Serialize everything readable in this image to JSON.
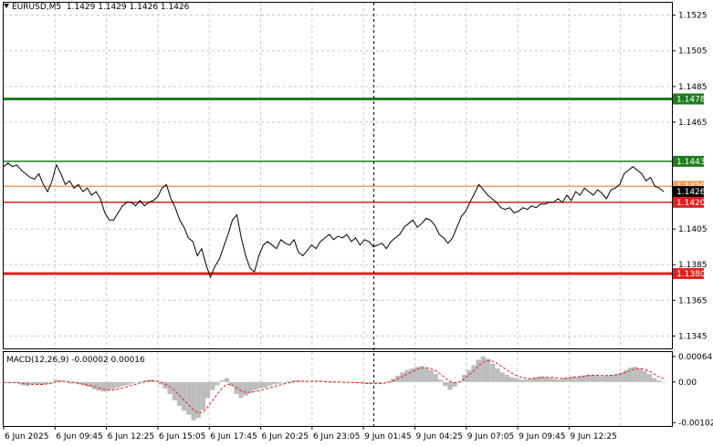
{
  "header": {
    "symbol": "EURUSD,M5",
    "ohlc": "1.1429 1.1429 1.1426 1.1426"
  },
  "price_axis": {
    "ticks": [
      "1.1525",
      "1.1505",
      "1.1485",
      "1.1465",
      "1.1405",
      "1.1385",
      "1.1365",
      "1.1345"
    ]
  },
  "levels": [
    {
      "label": "1.1478",
      "value": 1.1478,
      "color": "#1e7d1e",
      "style": "thick"
    },
    {
      "label": "1.1443",
      "value": 1.1443,
      "color": "#1e7d1e",
      "style": "thin"
    },
    {
      "label": "1.1429",
      "value": 1.1429,
      "color": "#f0a060",
      "style": "thin"
    },
    {
      "label": "1.1426",
      "value": 1.1426,
      "color": "#000000",
      "style": "current"
    },
    {
      "label": "1.1420",
      "value": 1.142,
      "color": "#e02020",
      "style": "thin"
    },
    {
      "label": "1.1380",
      "value": 1.138,
      "color": "#e02020",
      "style": "thick"
    }
  ],
  "macd": {
    "label": "MACD(12,26,9) -0.00002 0.00016",
    "ticks": [
      "0.00064",
      "0.00",
      "-0.00102"
    ]
  },
  "time_axis": {
    "labels": [
      "6 Jun 2025",
      "6 Jun 09:45",
      "6 Jun 12:25",
      "6 Jun 15:05",
      "6 Jun 17:45",
      "6 Jun 20:25",
      "6 Jun 23:05",
      "9 Jun 01:45",
      "9 Jun 04:25",
      "9 Jun 07:05",
      "9 Jun 09:45",
      "9 Jun 12:25"
    ]
  },
  "chart_data": {
    "type": "line",
    "ylim": [
      1.1338,
      1.1532
    ],
    "series": [
      {
        "values": [
          1.144,
          1.1442,
          1.144,
          1.1441,
          1.1438,
          1.1436,
          1.1434,
          1.1433,
          1.1436,
          1.143,
          1.1426,
          1.1432,
          1.1441,
          1.1436,
          1.143,
          1.1432,
          1.1428,
          1.143,
          1.1426,
          1.1428,
          1.1424,
          1.1426,
          1.1422,
          1.1414,
          1.141,
          1.141,
          1.1414,
          1.1418,
          1.142,
          1.142,
          1.1418,
          1.1421,
          1.1418,
          1.142,
          1.1421,
          1.1423,
          1.1428,
          1.143,
          1.1422,
          1.1417,
          1.141,
          1.1406,
          1.14,
          1.1398,
          1.139,
          1.1394,
          1.1385,
          1.1378,
          1.1384,
          1.1388,
          1.1395,
          1.1402,
          1.141,
          1.1413,
          1.14,
          1.139,
          1.1383,
          1.1381,
          1.139,
          1.1396,
          1.1398,
          1.1396,
          1.1394,
          1.1399,
          1.1397,
          1.1396,
          1.1399,
          1.1392,
          1.139,
          1.1393,
          1.1396,
          1.1394,
          1.1398,
          1.14,
          1.1402,
          1.1399,
          1.1401,
          1.14,
          1.1402,
          1.1398,
          1.14,
          1.1396,
          1.1399,
          1.1398,
          1.1395,
          1.1396,
          1.1397,
          1.1394,
          1.1398,
          1.14,
          1.1402,
          1.1406,
          1.1408,
          1.141,
          1.1406,
          1.1408,
          1.1411,
          1.141,
          1.1407,
          1.1402,
          1.14,
          1.1397,
          1.14,
          1.1406,
          1.1412,
          1.1415,
          1.142,
          1.1425,
          1.143,
          1.1427,
          1.1424,
          1.1422,
          1.142,
          1.1417,
          1.1416,
          1.1417,
          1.1414,
          1.1415,
          1.1417,
          1.1416,
          1.1418,
          1.1417,
          1.1419,
          1.1419,
          1.142,
          1.142,
          1.1422,
          1.142,
          1.1424,
          1.1421,
          1.1426,
          1.1424,
          1.1428,
          1.1426,
          1.1424,
          1.1427,
          1.1425,
          1.1422,
          1.1427,
          1.1428,
          1.143,
          1.1436,
          1.1438,
          1.144,
          1.1438,
          1.1436,
          1.1432,
          1.1434,
          1.1429,
          1.1428,
          1.1426
        ]
      }
    ],
    "macd_histogram": [
      -1e-05,
      -2e-05,
      0.0,
      -3e-05,
      -8e-05,
      -0.0001,
      -6e-05,
      -5e-05,
      -7e-05,
      -4e-05,
      -2e-05,
      6e-05,
      4e-05,
      0.0,
      -4e-05,
      -3e-05,
      -6e-05,
      -9e-05,
      -0.00012,
      -0.00018,
      -0.00022,
      -0.00024,
      -0.00022,
      -0.00018,
      -0.00014,
      -0.0001,
      -8e-05,
      -4e-05,
      0.0,
      2e-05,
      5e-05,
      6e-05,
      2e-05,
      -6e-05,
      -0.00016,
      -0.0003,
      -0.00046,
      -0.0006,
      -0.00072,
      -0.00082,
      -0.00096,
      -0.0009,
      -0.0007,
      -0.0004,
      -0.0002,
      -8e-05,
      4e-05,
      0.0001,
      -0.0001,
      -0.0003,
      -0.0004,
      -0.00034,
      -0.00026,
      -0.0002,
      -0.00016,
      -0.00014,
      -0.0001,
      -6e-05,
      -4e-05,
      -2e-05,
      2e-05,
      4e-05,
      4e-05,
      2e-05,
      0.0,
      2e-05,
      3e-05,
      2e-05,
      0.0,
      -2e-05,
      -1e-05,
      0.0,
      -1e-05,
      0.0,
      -2e-05,
      -3e-05,
      -4e-05,
      -5e-05,
      -4e-05,
      -3e-05,
      -1e-05,
      2e-05,
      8e-05,
      0.00016,
      0.00024,
      0.0003,
      0.00034,
      0.00038,
      0.0004,
      0.00036,
      0.0003,
      0.0002,
      6e-05,
      -0.0001,
      -0.0002,
      -0.00012,
      2e-05,
      0.00018,
      0.0003,
      0.00042,
      0.00056,
      0.00064,
      0.00058,
      0.00046,
      0.00034,
      0.00024,
      0.00018,
      0.00012,
      0.0001,
      6e-05,
      6e-05,
      8e-05,
      0.00012,
      0.00014,
      0.00012,
      0.0001,
      8e-05,
      6e-05,
      0.0001,
      0.00012,
      0.00014,
      0.00012,
      0.00016,
      0.00018,
      0.00018,
      0.00016,
      0.00014,
      0.00016,
      0.00018,
      0.0002,
      0.00024,
      0.0003,
      0.00036,
      0.00038,
      0.00034,
      0.00028,
      0.0002,
      0.0001,
      4e-05,
      0.0
    ],
    "macd_signal": [
      -1e-05,
      -1e-05,
      -1e-05,
      -2e-05,
      -4e-05,
      -5e-05,
      -6e-05,
      -6e-05,
      -6e-05,
      -5e-05,
      -4e-05,
      0.0,
      2e-05,
      2e-05,
      0.0,
      -2e-05,
      -4e-05,
      -6e-05,
      -8e-05,
      -0.00011,
      -0.00015,
      -0.00018,
      -0.0002,
      -0.0002,
      -0.00018,
      -0.00015,
      -0.00012,
      -8e-05,
      -5e-05,
      -2e-05,
      1e-05,
      3e-05,
      3e-05,
      0.0,
      -5e-05,
      -0.00012,
      -0.00022,
      -0.00033,
      -0.00046,
      -0.00058,
      -0.0007,
      -0.00078,
      -0.00075,
      -0.00062,
      -0.00046,
      -0.0003,
      -0.00016,
      -5e-05,
      -7e-05,
      -0.00014,
      -0.00022,
      -0.00026,
      -0.00026,
      -0.00024,
      -0.00021,
      -0.00018,
      -0.00015,
      -0.00011,
      -8e-05,
      -5e-05,
      -2e-05,
      0.0,
      2e-05,
      2e-05,
      2e-05,
      2e-05,
      2e-05,
      2e-05,
      1e-05,
      0.0,
      0.0,
      0.0,
      -1e-05,
      -1e-05,
      -1e-05,
      -2e-05,
      -3e-05,
      -4e-05,
      -4e-05,
      -4e-05,
      -3e-05,
      -1e-05,
      3e-05,
      8e-05,
      0.00014,
      0.0002,
      0.00026,
      0.00031,
      0.00035,
      0.00036,
      0.00034,
      0.00028,
      0.0002,
      0.0001,
      2e-05,
      -2e-05,
      0.0,
      8e-05,
      0.00018,
      0.00028,
      0.0004,
      0.0005,
      0.00054,
      0.00052,
      0.00046,
      0.00038,
      0.0003,
      0.00022,
      0.00016,
      0.00012,
      9e-05,
      8e-05,
      9e-05,
      0.00011,
      0.00012,
      0.00012,
      0.00011,
      9e-05,
      9e-05,
      0.0001,
      0.00012,
      0.00013,
      0.00014,
      0.00016,
      0.00017,
      0.00017,
      0.00016,
      0.00016,
      0.00017,
      0.00018,
      0.0002,
      0.00024,
      0.00029,
      0.00033,
      0.00034,
      0.00032,
      0.00027,
      0.0002,
      0.00013,
      8e-05
    ]
  }
}
